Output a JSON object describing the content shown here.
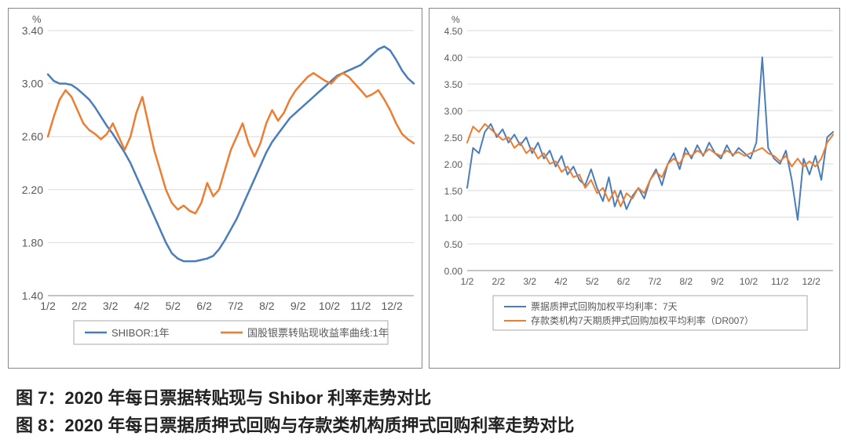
{
  "caption_left": "图 7：2020 年每日票据转贴现与 Shibor 利率走势对比",
  "caption_right": "图 8：2020 年每日票据质押式回购与存款类机构质押式回购利率走势对比",
  "chart_left": {
    "type": "line",
    "y_unit": "%",
    "ylim": [
      1.4,
      3.4
    ],
    "ytick_step": 0.4,
    "yticks": [
      "1.40",
      "1.80",
      "2.20",
      "2.60",
      "3.00",
      "3.40"
    ],
    "x_labels": [
      "1/2",
      "2/2",
      "3/2",
      "4/2",
      "5/2",
      "6/2",
      "7/2",
      "8/2",
      "9/2",
      "10/2",
      "11/2",
      "12/2"
    ],
    "grid_color": "#d9d9d9",
    "background_color": "#ffffff",
    "series": [
      {
        "name": "SHIBOR:1年",
        "color": "#4a7ebb",
        "stroke_width": 2.5,
        "data": [
          3.07,
          3.02,
          3.0,
          3.0,
          2.99,
          2.96,
          2.92,
          2.88,
          2.82,
          2.75,
          2.68,
          2.62,
          2.55,
          2.48,
          2.4,
          2.3,
          2.2,
          2.1,
          2.0,
          1.9,
          1.8,
          1.72,
          1.68,
          1.66,
          1.66,
          1.66,
          1.67,
          1.68,
          1.7,
          1.75,
          1.82,
          1.9,
          1.98,
          2.08,
          2.18,
          2.28,
          2.38,
          2.48,
          2.56,
          2.62,
          2.68,
          2.74,
          2.78,
          2.82,
          2.86,
          2.9,
          2.94,
          2.98,
          3.02,
          3.06,
          3.08,
          3.1,
          3.12,
          3.14,
          3.18,
          3.22,
          3.26,
          3.28,
          3.25,
          3.18,
          3.1,
          3.04,
          3.0
        ]
      },
      {
        "name": "国股银票转贴现收益率曲线:1年",
        "color": "#ed7d31",
        "stroke_width": 2.5,
        "data": [
          2.6,
          2.75,
          2.88,
          2.95,
          2.9,
          2.8,
          2.7,
          2.65,
          2.62,
          2.58,
          2.62,
          2.7,
          2.6,
          2.5,
          2.6,
          2.78,
          2.9,
          2.7,
          2.5,
          2.35,
          2.2,
          2.1,
          2.05,
          2.08,
          2.04,
          2.02,
          2.1,
          2.25,
          2.15,
          2.2,
          2.35,
          2.5,
          2.6,
          2.7,
          2.55,
          2.45,
          2.55,
          2.7,
          2.8,
          2.72,
          2.78,
          2.88,
          2.95,
          3.0,
          3.05,
          3.08,
          3.05,
          3.02,
          3.0,
          3.05,
          3.08,
          3.05,
          3.0,
          2.95,
          2.9,
          2.92,
          2.95,
          2.88,
          2.8,
          2.7,
          2.62,
          2.58,
          2.55
        ]
      }
    ]
  },
  "chart_right": {
    "type": "line",
    "y_unit": "%",
    "ylim": [
      0.0,
      4.5
    ],
    "ytick_step": 0.5,
    "yticks": [
      "0.00",
      "0.50",
      "1.00",
      "1.50",
      "2.00",
      "2.50",
      "3.00",
      "3.50",
      "4.00",
      "4.50"
    ],
    "x_labels": [
      "1/2",
      "2/2",
      "3/2",
      "4/2",
      "5/2",
      "6/2",
      "7/2",
      "8/2",
      "9/2",
      "10/2",
      "11/2",
      "12/2"
    ],
    "grid_color": "#d9d9d9",
    "background_color": "#ffffff",
    "series": [
      {
        "name": "票据质押式回购加权平均利率：7天",
        "color": "#4a7ebb",
        "stroke_width": 2,
        "data": [
          1.55,
          2.3,
          2.2,
          2.6,
          2.75,
          2.5,
          2.65,
          2.4,
          2.55,
          2.35,
          2.5,
          2.2,
          2.4,
          2.1,
          2.25,
          1.95,
          2.15,
          1.8,
          1.95,
          1.7,
          1.6,
          1.9,
          1.55,
          1.3,
          1.75,
          1.2,
          1.5,
          1.15,
          1.4,
          1.55,
          1.35,
          1.7,
          1.9,
          1.6,
          2.0,
          2.2,
          1.9,
          2.3,
          2.1,
          2.35,
          2.15,
          2.4,
          2.2,
          2.1,
          2.35,
          2.15,
          2.3,
          2.2,
          2.1,
          2.4,
          4.0,
          2.3,
          2.1,
          2.0,
          2.25,
          1.7,
          0.95,
          2.1,
          1.8,
          2.15,
          1.7,
          2.5,
          2.6
        ]
      },
      {
        "name": "存款类机构7天期质押式回购加权平均利率（DR007）",
        "color": "#ed7d31",
        "stroke_width": 2,
        "data": [
          2.4,
          2.7,
          2.6,
          2.75,
          2.65,
          2.55,
          2.45,
          2.5,
          2.3,
          2.4,
          2.2,
          2.3,
          2.1,
          2.2,
          2.0,
          2.05,
          1.85,
          1.95,
          1.75,
          1.8,
          1.55,
          1.7,
          1.45,
          1.55,
          1.3,
          1.5,
          1.2,
          1.45,
          1.35,
          1.55,
          1.45,
          1.7,
          1.85,
          1.75,
          2.0,
          2.1,
          2.0,
          2.2,
          2.15,
          2.25,
          2.18,
          2.28,
          2.2,
          2.15,
          2.25,
          2.18,
          2.22,
          2.15,
          2.2,
          2.25,
          2.3,
          2.2,
          2.15,
          2.05,
          2.15,
          1.95,
          2.1,
          1.95,
          2.05,
          1.95,
          2.1,
          2.4,
          2.55
        ]
      }
    ]
  }
}
